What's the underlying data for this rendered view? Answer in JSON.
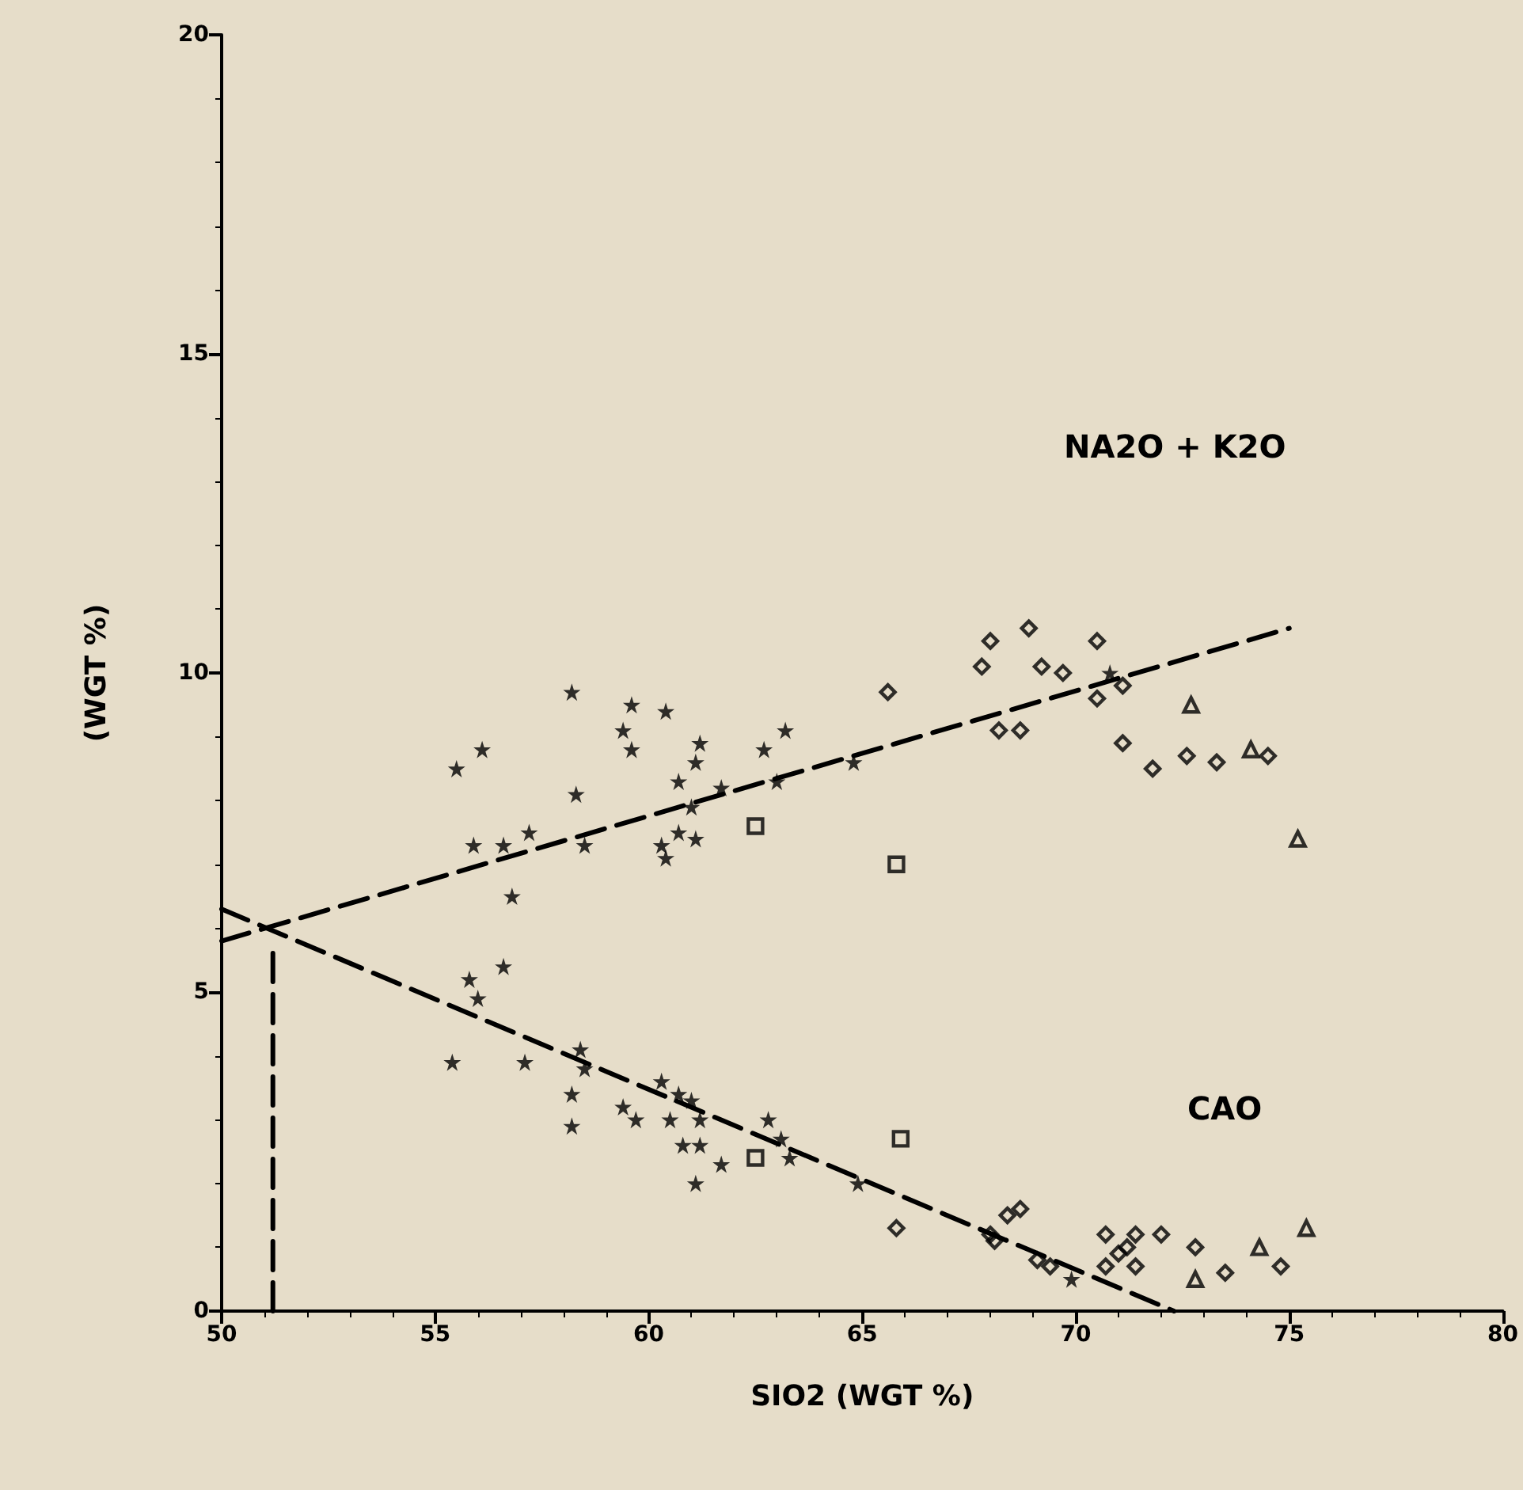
{
  "chart_data": {
    "type": "scatter",
    "xlabel": "SIO2 (WGT %)",
    "ylabel": "(WGT %)",
    "xlim": [
      50,
      80
    ],
    "xticks": [
      50,
      55,
      60,
      65,
      70,
      75,
      80
    ],
    "ylim": [
      0,
      20
    ],
    "yticks": [
      0,
      5,
      10,
      15,
      20
    ],
    "grid": false,
    "series": [
      {
        "marker": "star",
        "color": "#000000",
        "x": [
          58.2,
          59.6,
          60.4,
          59.4,
          59.6,
          61.2,
          61.1,
          56.1,
          55.5,
          62.7,
          63.2,
          64.8,
          63.0,
          61.7,
          60.7,
          61.0,
          58.3,
          57.2,
          55.9,
          56.6,
          58.5,
          60.7,
          61.1,
          60.3,
          60.4,
          56.8,
          70.8,
          56.6,
          55.8,
          56.0,
          55.4,
          57.1,
          58.4,
          58.5,
          58.2,
          58.2,
          59.4,
          59.7,
          60.3,
          60.7,
          61.0,
          60.5,
          61.2,
          62.8,
          63.1,
          60.8,
          61.2,
          61.1,
          61.7,
          63.3,
          64.9,
          69.9
        ],
        "values": [
          9.7,
          9.5,
          9.4,
          9.1,
          8.8,
          8.9,
          8.6,
          8.8,
          8.5,
          8.8,
          9.1,
          8.6,
          8.3,
          8.2,
          8.3,
          7.9,
          8.1,
          7.5,
          7.3,
          7.3,
          7.3,
          7.5,
          7.4,
          7.3,
          7.1,
          6.5,
          10.0,
          5.4,
          5.2,
          4.9,
          3.9,
          3.9,
          4.1,
          3.8,
          3.4,
          2.9,
          3.2,
          3.0,
          3.6,
          3.4,
          3.3,
          3.0,
          3.0,
          3.0,
          2.7,
          2.6,
          2.6,
          2.0,
          2.3,
          2.4,
          2.0,
          0.5
        ]
      },
      {
        "marker": "square",
        "color": "#000000",
        "x": [
          62.5,
          65.8,
          65.9,
          62.5
        ],
        "values": [
          7.6,
          7.0,
          2.7,
          2.4
        ]
      },
      {
        "marker": "diamond",
        "color": "#000000",
        "x": [
          65.6,
          68.0,
          68.9,
          67.8,
          69.2,
          69.7,
          70.5,
          70.5,
          71.1,
          68.2,
          68.7,
          71.1,
          71.8,
          72.6,
          73.3,
          74.5,
          65.8,
          68.4,
          68.7,
          68.0,
          68.1,
          69.1,
          69.4,
          70.7,
          70.7,
          71.0,
          71.2,
          71.4,
          71.4,
          72.0,
          72.8,
          73.5,
          74.8
        ],
        "values": [
          9.7,
          10.5,
          10.7,
          10.1,
          10.1,
          10.0,
          10.5,
          9.6,
          9.8,
          9.1,
          9.1,
          8.9,
          8.5,
          8.7,
          8.6,
          8.7,
          1.3,
          1.5,
          1.6,
          1.2,
          1.1,
          0.8,
          0.7,
          1.2,
          0.7,
          0.9,
          1.0,
          1.2,
          0.7,
          1.2,
          1.0,
          0.6,
          0.7
        ]
      },
      {
        "marker": "triangle",
        "color": "#000000",
        "x": [
          72.7,
          74.1,
          75.2,
          72.8,
          74.3,
          75.4
        ],
        "values": [
          9.5,
          8.8,
          7.4,
          0.5,
          1.0,
          1.3
        ]
      },
      {
        "type": "line",
        "marker": "none",
        "line_style": "dashed",
        "color": "#000000",
        "x": [
          50,
          75
        ],
        "values": [
          5.8,
          10.7
        ]
      },
      {
        "type": "line",
        "marker": "none",
        "line_style": "dashed",
        "color": "#000000",
        "x": [
          50,
          72.3
        ],
        "values": [
          6.3,
          0
        ]
      },
      {
        "type": "line",
        "marker": "none",
        "line_style": "dashed",
        "color": "#000000",
        "x": [
          51.2,
          51.2
        ],
        "values": [
          0,
          5.8
        ]
      }
    ],
    "annotations": [
      "NA2O + K2O",
      "CAO"
    ]
  }
}
